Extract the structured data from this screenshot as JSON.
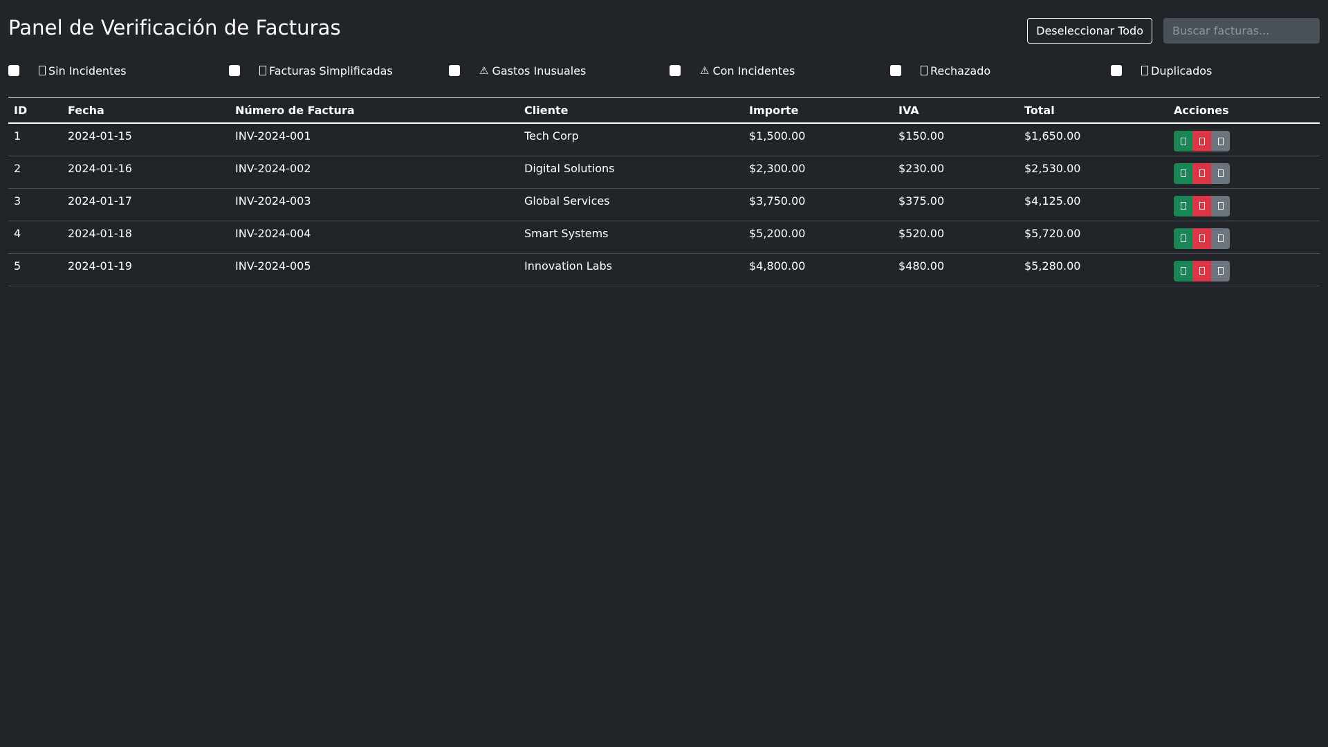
{
  "header": {
    "title": "Panel de Verificación de Facturas",
    "deselect_label": "Deseleccionar Todo",
    "search_placeholder": "Buscar facturas..."
  },
  "filters": [
    {
      "label": "Sin Incidentes",
      "icon": "check-icon"
    },
    {
      "label": "Facturas Simplificadas",
      "icon": "receipt-icon"
    },
    {
      "label": "Gastos Inusuales",
      "icon": "warning-icon",
      "glyph": "⚠"
    },
    {
      "label": "Con Incidentes",
      "icon": "warning-icon",
      "glyph": "⚠"
    },
    {
      "label": "Rechazado",
      "icon": "x-icon"
    },
    {
      "label": "Duplicados",
      "icon": "copy-icon"
    }
  ],
  "table": {
    "columns": [
      "ID",
      "Fecha",
      "Número de Factura",
      "Cliente",
      "Importe",
      "IVA",
      "Total",
      "Acciones"
    ],
    "rows": [
      {
        "id": "1",
        "fecha": "2024-01-15",
        "numero": "INV-2024-001",
        "cliente": "Tech Corp",
        "importe": "$1,500.00",
        "iva": "$150.00",
        "total": "$1,650.00"
      },
      {
        "id": "2",
        "fecha": "2024-01-16",
        "numero": "INV-2024-002",
        "cliente": "Digital Solutions",
        "importe": "$2,300.00",
        "iva": "$230.00",
        "total": "$2,530.00"
      },
      {
        "id": "3",
        "fecha": "2024-01-17",
        "numero": "INV-2024-003",
        "cliente": "Global Services",
        "importe": "$3,750.00",
        "iva": "$375.00",
        "total": "$4,125.00"
      },
      {
        "id": "4",
        "fecha": "2024-01-18",
        "numero": "INV-2024-004",
        "cliente": "Smart Systems",
        "importe": "$5,200.00",
        "iva": "$520.00",
        "total": "$5,720.00"
      },
      {
        "id": "5",
        "fecha": "2024-01-19",
        "numero": "INV-2024-005",
        "cliente": "Innovation Labs",
        "importe": "$4,800.00",
        "iva": "$480.00",
        "total": "$5,280.00"
      }
    ]
  },
  "colors": {
    "background": "#212529",
    "approve": "#198754",
    "reject": "#dc3545",
    "view": "#6c757d"
  }
}
